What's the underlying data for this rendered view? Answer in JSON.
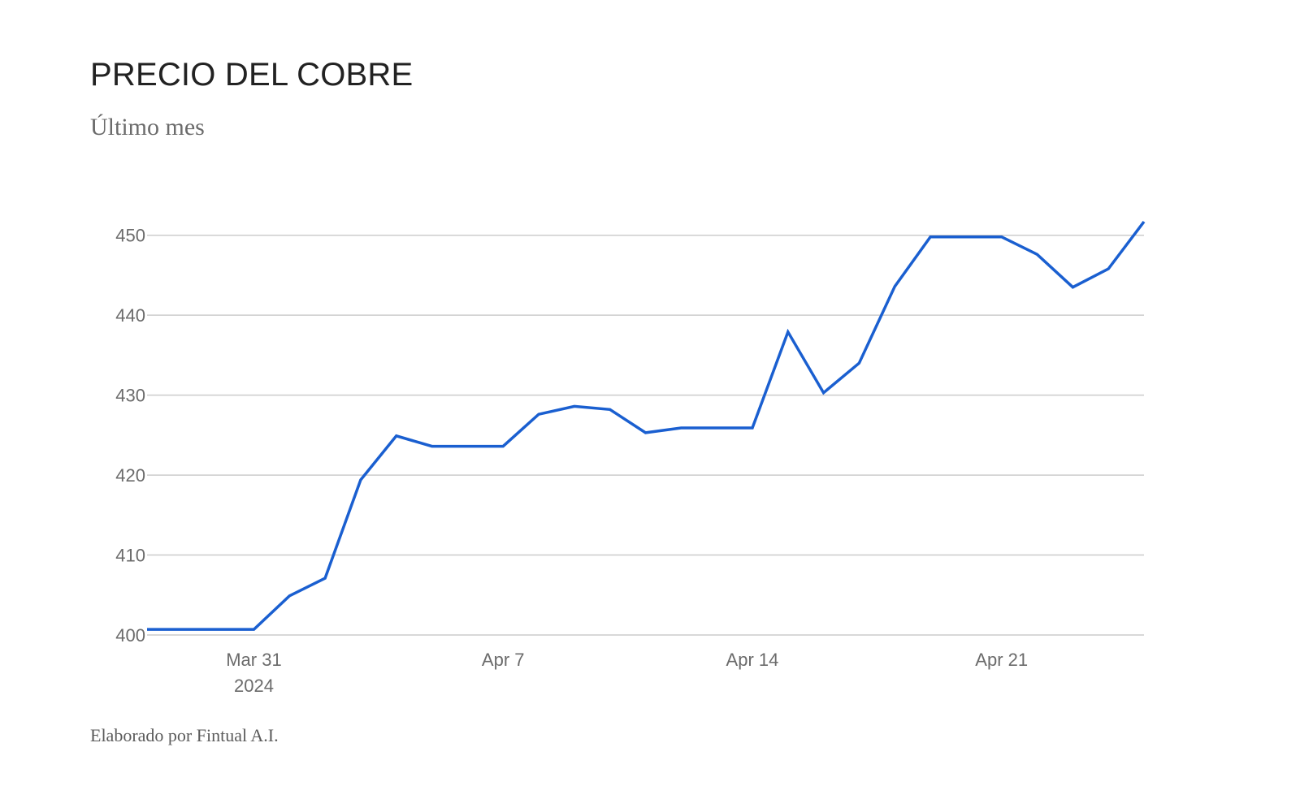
{
  "header": {
    "title": "PRECIO DEL COBRE",
    "subtitle": "Último mes"
  },
  "footer": {
    "source": "Elaborado por Fintual A.I."
  },
  "colors": {
    "line": "#1a5fd0"
  },
  "chart_data": {
    "type": "line",
    "title": "PRECIO DEL COBRE",
    "subtitle": "Último mes",
    "xlabel": "",
    "ylabel": "",
    "x": [
      "2024-03-28",
      "2024-03-29",
      "2024-03-30",
      "2024-03-31",
      "2024-04-01",
      "2024-04-02",
      "2024-04-03",
      "2024-04-04",
      "2024-04-05",
      "2024-04-06",
      "2024-04-07",
      "2024-04-08",
      "2024-04-09",
      "2024-04-10",
      "2024-04-11",
      "2024-04-12",
      "2024-04-13",
      "2024-04-14",
      "2024-04-15",
      "2024-04-16",
      "2024-04-17",
      "2024-04-18",
      "2024-04-19",
      "2024-04-20",
      "2024-04-21",
      "2024-04-22",
      "2024-04-23",
      "2024-04-24",
      "2024-04-25"
    ],
    "series": [
      {
        "values": [
          400.7,
          400.7,
          400.7,
          400.7,
          404.9,
          407.1,
          419.4,
          424.9,
          423.6,
          423.6,
          423.6,
          427.6,
          428.6,
          428.2,
          425.3,
          425.9,
          425.9,
          425.9,
          437.9,
          430.3,
          434.0,
          443.6,
          449.8,
          449.8,
          449.8,
          447.6,
          443.5,
          445.8,
          451.7
        ]
      }
    ],
    "xlim": [
      "2024-03-28",
      "2024-04-25"
    ],
    "ylim": [
      400,
      452
    ],
    "yticks": [
      {
        "value": 400,
        "label": "400"
      },
      {
        "value": 410,
        "label": "410"
      },
      {
        "value": 420,
        "label": "420"
      },
      {
        "value": 430,
        "label": "430"
      },
      {
        "value": 440,
        "label": "440"
      },
      {
        "value": 450,
        "label": "450"
      }
    ],
    "xticks": [
      {
        "value": "2024-03-31",
        "label": "Mar 31",
        "sublabel": "2024"
      },
      {
        "value": "2024-04-07",
        "label": "Apr 7",
        "sublabel": ""
      },
      {
        "value": "2024-04-14",
        "label": "Apr 14",
        "sublabel": ""
      },
      {
        "value": "2024-04-21",
        "label": "Apr 21",
        "sublabel": ""
      }
    ],
    "grid": "horizontal",
    "legend": "none"
  }
}
